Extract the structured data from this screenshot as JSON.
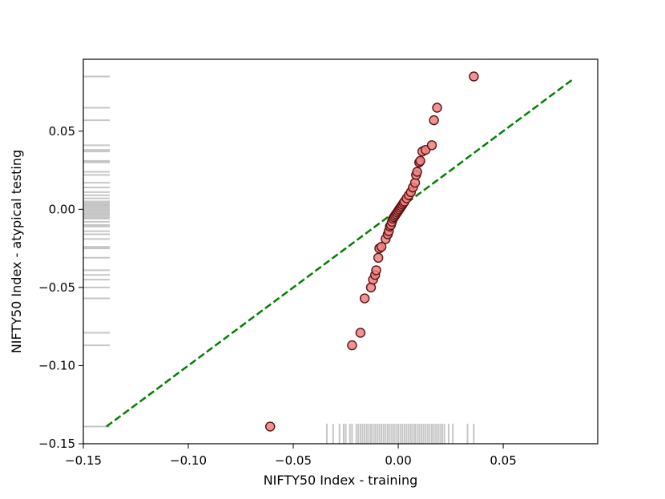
{
  "chart_data": {
    "type": "scatter",
    "title": "",
    "xlabel": "NIFTY50 Index - training",
    "ylabel": "NIFTY50 Index - atypical testing",
    "xlim": [
      -0.15,
      0.095
    ],
    "ylim": [
      -0.15,
      0.096
    ],
    "x_ticks": [
      -0.15,
      -0.1,
      -0.05,
      0.0,
      0.05
    ],
    "x_tick_labels": [
      "−0.15",
      "−0.10",
      "−0.05",
      "0.00",
      "0.05"
    ],
    "y_ticks": [
      -0.15,
      -0.1,
      -0.05,
      0.0,
      0.05
    ],
    "y_tick_labels": [
      "−0.15",
      "−0.10",
      "−0.05",
      "0.00",
      "0.05"
    ],
    "grid": false,
    "legend": "none",
    "colors": {
      "points_fill": "#f08080",
      "points_edge": "#5a1010",
      "reference_line": "#008000",
      "rug": "#808080"
    },
    "reference_line": {
      "style": "dashed",
      "x": [
        -0.139,
        0.083
      ],
      "y": [
        -0.139,
        0.083
      ]
    },
    "points": [
      {
        "x": -0.061,
        "y": -0.139
      },
      {
        "x": -0.022,
        "y": -0.087
      },
      {
        "x": -0.018,
        "y": -0.079
      },
      {
        "x": -0.016,
        "y": -0.057
      },
      {
        "x": -0.013,
        "y": -0.05
      },
      {
        "x": -0.012,
        "y": -0.045
      },
      {
        "x": -0.011,
        "y": -0.042
      },
      {
        "x": -0.0105,
        "y": -0.039
      },
      {
        "x": -0.0095,
        "y": -0.031
      },
      {
        "x": -0.009,
        "y": -0.025
      },
      {
        "x": -0.008,
        "y": -0.024
      },
      {
        "x": -0.006,
        "y": -0.019
      },
      {
        "x": -0.005,
        "y": -0.016
      },
      {
        "x": -0.0045,
        "y": -0.014
      },
      {
        "x": -0.004,
        "y": -0.011
      },
      {
        "x": -0.0035,
        "y": -0.01
      },
      {
        "x": -0.003,
        "y": -0.008
      },
      {
        "x": -0.0025,
        "y": -0.006
      },
      {
        "x": -0.002,
        "y": -0.005
      },
      {
        "x": -0.0015,
        "y": -0.004
      },
      {
        "x": -0.001,
        "y": -0.003
      },
      {
        "x": -0.0005,
        "y": -0.002
      },
      {
        "x": 0.0,
        "y": -0.001
      },
      {
        "x": 0.0005,
        "y": 0.0
      },
      {
        "x": 0.001,
        "y": 0.001
      },
      {
        "x": 0.0015,
        "y": 0.002
      },
      {
        "x": 0.002,
        "y": 0.003
      },
      {
        "x": 0.0025,
        "y": 0.004
      },
      {
        "x": 0.003,
        "y": 0.005
      },
      {
        "x": 0.004,
        "y": 0.007
      },
      {
        "x": 0.005,
        "y": 0.009
      },
      {
        "x": 0.006,
        "y": 0.011
      },
      {
        "x": 0.007,
        "y": 0.014
      },
      {
        "x": 0.008,
        "y": 0.017
      },
      {
        "x": 0.0085,
        "y": 0.022
      },
      {
        "x": 0.009,
        "y": 0.024
      },
      {
        "x": 0.01,
        "y": 0.03
      },
      {
        "x": 0.0105,
        "y": 0.031
      },
      {
        "x": 0.0115,
        "y": 0.037
      },
      {
        "x": 0.013,
        "y": 0.038
      },
      {
        "x": 0.016,
        "y": 0.041
      },
      {
        "x": 0.017,
        "y": 0.057
      },
      {
        "x": 0.0185,
        "y": 0.065
      },
      {
        "x": 0.036,
        "y": 0.085
      }
    ],
    "rug_x": [
      -0.034,
      -0.031,
      -0.028,
      -0.026,
      -0.025,
      -0.023,
      -0.022,
      -0.02,
      -0.019,
      -0.018,
      -0.017,
      -0.016,
      -0.015,
      -0.014,
      -0.013,
      -0.012,
      -0.011,
      -0.01,
      -0.009,
      -0.008,
      -0.007,
      -0.006,
      -0.005,
      -0.004,
      -0.003,
      -0.002,
      -0.001,
      0.0,
      0.001,
      0.002,
      0.003,
      0.004,
      0.005,
      0.006,
      0.007,
      0.008,
      0.009,
      0.01,
      0.011,
      0.012,
      0.013,
      0.014,
      0.015,
      0.016,
      0.017,
      0.018,
      0.019,
      0.02,
      0.021,
      0.022,
      0.024,
      0.026,
      0.033,
      0.036
    ],
    "rug_y": [
      0.085,
      0.065,
      0.057,
      0.041,
      0.038,
      0.037,
      0.031,
      0.03,
      0.024,
      0.022,
      0.017,
      0.014,
      0.011,
      0.009,
      0.007,
      0.005,
      0.004,
      0.003,
      0.002,
      0.001,
      0.0,
      -0.001,
      -0.002,
      -0.003,
      -0.004,
      -0.005,
      -0.006,
      -0.008,
      -0.01,
      -0.011,
      -0.014,
      -0.016,
      -0.019,
      -0.024,
      -0.025,
      -0.031,
      -0.039,
      -0.042,
      -0.045,
      -0.05,
      -0.057,
      -0.079,
      -0.087,
      -0.139
    ]
  }
}
